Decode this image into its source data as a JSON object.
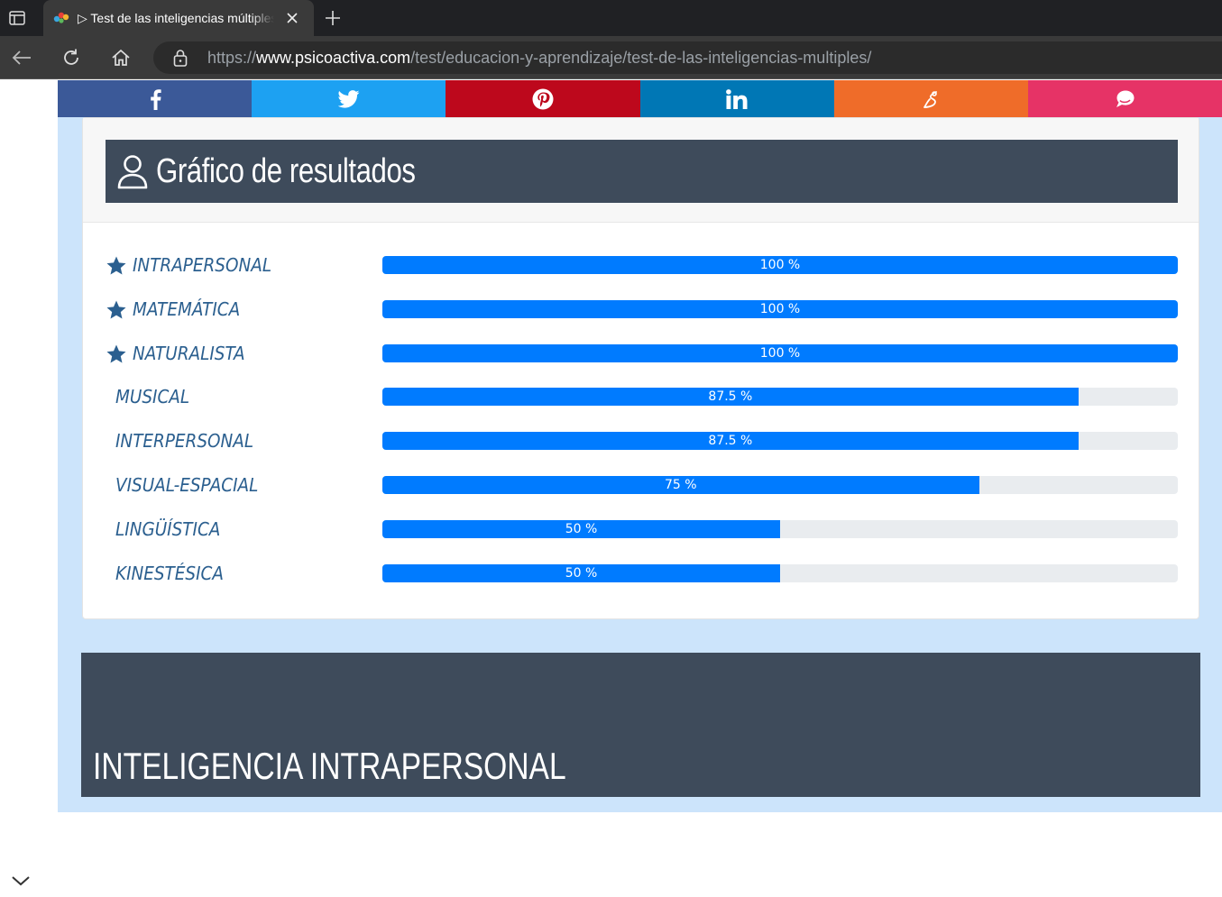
{
  "browser": {
    "tab_title": "▷ Test de las inteligencias múltiples",
    "url_scheme": "https://",
    "url_domain": "www.psicoactiva.com",
    "url_path": "/test/educacion-y-aprendizaje/test-de-las-inteligencias-multiples/"
  },
  "share": [
    {
      "name": "facebook",
      "color": "#3b5998",
      "icon": "facebook-icon"
    },
    {
      "name": "twitter",
      "color": "#1da1f2",
      "icon": "twitter-icon"
    },
    {
      "name": "pinterest",
      "color": "#bd081c",
      "icon": "pinterest-icon"
    },
    {
      "name": "linkedin",
      "color": "#0077b5",
      "icon": "linkedin-icon"
    },
    {
      "name": "meneame",
      "color": "#ef6c29",
      "icon": "meneame-icon"
    },
    {
      "name": "comment",
      "color": "#e63366",
      "icon": "chat-icon"
    }
  ],
  "results": {
    "title": "Gráfico de resultados",
    "items": [
      {
        "label": "INTRAPERSONAL",
        "value": 100,
        "value_label": "100 %",
        "starred": true
      },
      {
        "label": "MATEMÁTICA",
        "value": 100,
        "value_label": "100 %",
        "starred": true
      },
      {
        "label": "NATURALISTA",
        "value": 100,
        "value_label": "100 %",
        "starred": true
      },
      {
        "label": "MUSICAL",
        "value": 87.5,
        "value_label": "87.5 %",
        "starred": false
      },
      {
        "label": "INTERPERSONAL",
        "value": 87.5,
        "value_label": "87.5 %",
        "starred": false
      },
      {
        "label": "VISUAL-ESPACIAL",
        "value": 75,
        "value_label": "75 %",
        "starred": false
      },
      {
        "label": "LINGÜÍSTICA",
        "value": 50,
        "value_label": "50 %",
        "starred": false
      },
      {
        "label": "KINESTÉSICA",
        "value": 50,
        "value_label": "50 %",
        "starred": false
      }
    ]
  },
  "section": {
    "title": "INTELIGENCIA INTRAPERSONAL"
  },
  "colors": {
    "bar": "#007bff",
    "header": "#3e4b5b",
    "label": "#2b5f8f",
    "page_bg": "#cce4fb"
  }
}
